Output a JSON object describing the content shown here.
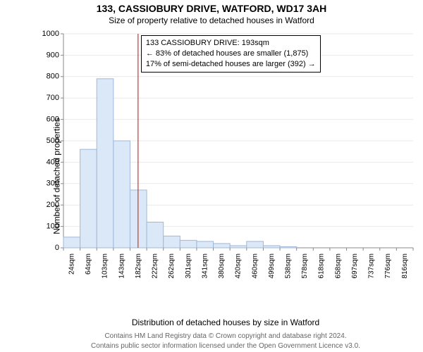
{
  "title_main": "133, CASSIOBURY DRIVE, WATFORD, WD17 3AH",
  "title_sub": "Size of property relative to detached houses in Watford",
  "y_axis_label": "Number of detached properties",
  "x_axis_label": "Distribution of detached houses by size in Watford",
  "copyright_line1": "Contains HM Land Registry data © Crown copyright and database right 2024.",
  "copyright_line2": "Contains public sector information licensed under the Open Government Licence v3.0.",
  "annotation": {
    "line1": "133 CASSIOBURY DRIVE: 193sqm",
    "line2": "← 83% of detached houses are smaller (1,875)",
    "line3": "17% of semi-detached houses are larger (392) →"
  },
  "chart": {
    "type": "histogram",
    "ylim": [
      0,
      1000
    ],
    "ytick_step": 100,
    "x_categories": [
      "24sqm",
      "64sqm",
      "103sqm",
      "143sqm",
      "182sqm",
      "222sqm",
      "262sqm",
      "301sqm",
      "341sqm",
      "380sqm",
      "420sqm",
      "460sqm",
      "499sqm",
      "538sqm",
      "578sqm",
      "618sqm",
      "658sqm",
      "697sqm",
      "737sqm",
      "776sqm",
      "816sqm"
    ],
    "values": [
      50,
      460,
      790,
      500,
      270,
      120,
      55,
      35,
      30,
      20,
      10,
      30,
      10,
      5,
      0,
      0,
      0,
      0,
      0,
      0,
      0
    ],
    "bar_fill": "#dbe8f8",
    "bar_stroke": "#a0b8d8",
    "background_color": "#ffffff",
    "grid_color": "#e8e8e8",
    "axis_color": "#888888",
    "marker_line_color": "#c9352d",
    "marker_x_value": 193,
    "x_numeric_min": 24,
    "x_numeric_max": 816,
    "label_fontsize": 12,
    "title_fontsize": 14,
    "tick_fontsize_y": 11,
    "tick_fontsize_x": 10
  }
}
